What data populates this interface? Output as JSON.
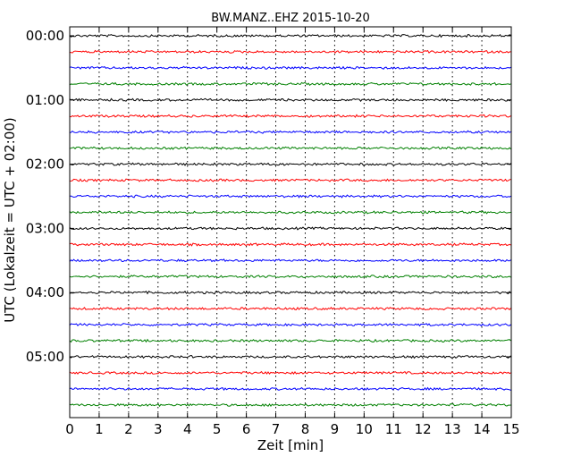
{
  "chart_data": {
    "type": "line",
    "title": "BW.MANZ..EHZ 2015-10-20",
    "xlabel": "Zeit  [min]",
    "ylabel": "UTC (Lokalzeit = UTC + 02:00)",
    "xlim": [
      0,
      15
    ],
    "x_ticks": [
      "0",
      "1",
      "2",
      "3",
      "4",
      "5",
      "6",
      "7",
      "8",
      "9",
      "10",
      "11",
      "12",
      "13",
      "14",
      "15"
    ],
    "y_ticks": [
      "00:00",
      "01:00",
      "02:00",
      "03:00",
      "04:00",
      "05:00"
    ],
    "grid": "vertical dotted at each minute",
    "trace_colors": [
      "#000000",
      "#ff0000",
      "#0000ff",
      "#008000"
    ],
    "trace_minutes_per_row": 15,
    "trace_start_times_utc": [
      "00:00",
      "00:15",
      "00:30",
      "00:45",
      "01:00",
      "01:15",
      "01:30",
      "01:45",
      "02:00",
      "02:15",
      "02:30",
      "02:45",
      "03:00",
      "03:15",
      "03:30",
      "03:45",
      "04:00",
      "04:15",
      "04:30",
      "04:45",
      "05:00",
      "05:15",
      "05:30",
      "05:45"
    ]
  }
}
